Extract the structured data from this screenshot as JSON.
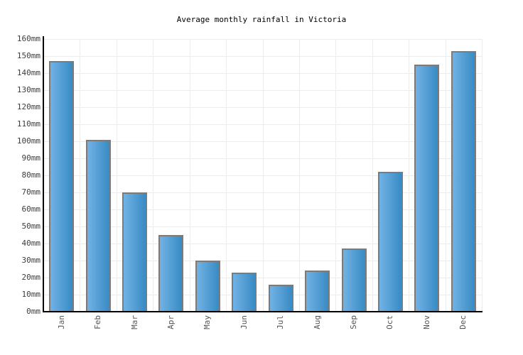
{
  "title": "Average monthly rainfall in Victoria",
  "chart_data": {
    "type": "bar",
    "title": "Average monthly rainfall in Victoria",
    "categories": [
      "Jan",
      "Feb",
      "Mar",
      "Apr",
      "May",
      "Jun",
      "Jul",
      "Aug",
      "Sep",
      "Oct",
      "Nov",
      "Dec"
    ],
    "values": [
      147,
      101,
      70,
      45,
      30,
      23,
      16,
      24,
      37,
      82,
      145,
      153
    ],
    "unit": "mm",
    "xlabel": "",
    "ylabel": "",
    "ylim": [
      0,
      160
    ],
    "ytick_step": 10,
    "ytick_suffix": "mm",
    "grid": true,
    "legend_position": "none"
  },
  "colors": {
    "background": "#ffffff",
    "grid": "#ececec",
    "axis": "#000000",
    "ytick_label": "#3d3d3d",
    "xtick_label": "#555555",
    "bar_fill_left": "#71b2e5",
    "bar_fill_right": "#388bc4",
    "bar_border": "#7b7b7b"
  }
}
